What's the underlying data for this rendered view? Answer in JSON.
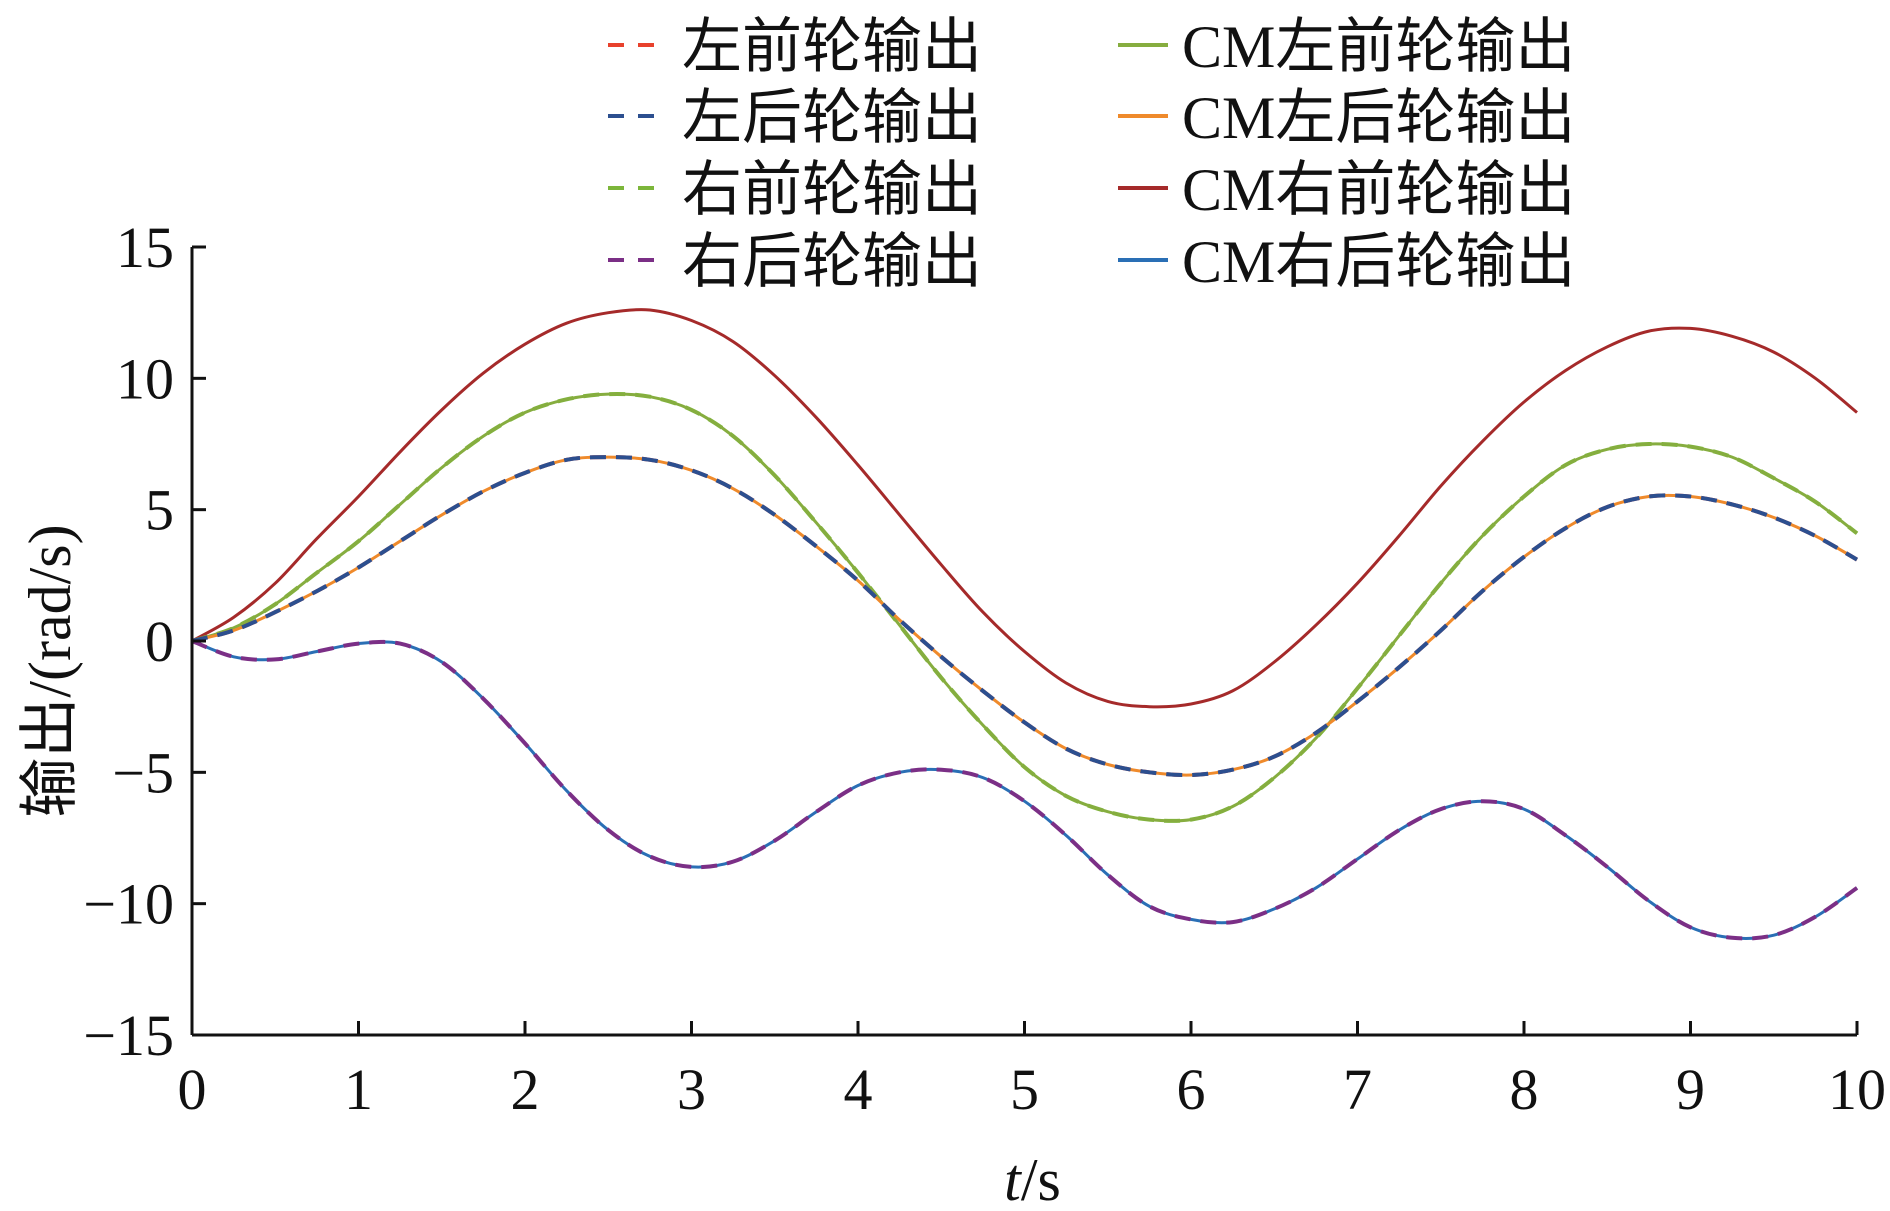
{
  "chart_data": {
    "type": "line",
    "xlabel_italic": "t",
    "xlabel_unit": "/s",
    "ylabel": "输出/(rad/s)",
    "xlim": [
      0,
      10
    ],
    "ylim": [
      -15,
      15
    ],
    "xticks": [
      0,
      1,
      2,
      3,
      4,
      5,
      6,
      7,
      8,
      9,
      10
    ],
    "yticks": [
      15,
      10,
      5,
      0,
      -5,
      -10,
      -15
    ],
    "ytick_labels": [
      "15",
      "10",
      "5",
      "0",
      "−5",
      "−10",
      "−15"
    ],
    "legend_position": "top",
    "legend": {
      "left": [
        {
          "label": "左前轮输出",
          "color": "#e8412c",
          "style": "dashed"
        },
        {
          "label": "左后轮输出",
          "color": "#2c4f8f",
          "style": "dashed"
        },
        {
          "label": "右前轮输出",
          "color": "#7cb63a",
          "style": "dashed"
        },
        {
          "label": "右后轮输出",
          "color": "#7b2f86",
          "style": "dashed"
        }
      ],
      "right": [
        {
          "label": "CM左前轮输出",
          "color": "#86ad3f",
          "style": "solid"
        },
        {
          "label": "CM左后轮输出",
          "color": "#ef8a2b",
          "style": "solid"
        },
        {
          "label": "CM右前轮输出",
          "color": "#a52a2a",
          "style": "solid"
        },
        {
          "label": "CM右后轮输出",
          "color": "#2a6fb5",
          "style": "solid"
        }
      ]
    },
    "x": [
      0,
      0.25,
      0.5,
      0.75,
      1,
      1.25,
      1.5,
      1.75,
      2,
      2.25,
      2.5,
      2.75,
      3,
      3.25,
      3.5,
      3.75,
      4,
      4.25,
      4.5,
      4.75,
      5,
      5.25,
      5.5,
      5.75,
      6,
      6.25,
      6.5,
      6.75,
      7,
      7.25,
      7.5,
      7.75,
      8,
      8.25,
      8.5,
      8.75,
      9,
      9.25,
      9.5,
      9.75,
      10
    ],
    "series": [
      {
        "name": "CM右前轮输出",
        "color": "#a52a2a",
        "style": "solid",
        "values": [
          0,
          0.9,
          2.2,
          3.9,
          5.5,
          7.2,
          8.8,
          10.2,
          11.3,
          12.1,
          12.5,
          12.6,
          12.2,
          11.4,
          10.1,
          8.5,
          6.7,
          4.8,
          2.9,
          1.1,
          -0.4,
          -1.6,
          -2.3,
          -2.5,
          -2.4,
          -1.9,
          -0.8,
          0.6,
          2.2,
          4.0,
          5.9,
          7.6,
          9.1,
          10.3,
          11.2,
          11.8,
          11.9,
          11.6,
          11.0,
          10.0,
          8.7
        ]
      },
      {
        "name": "右前轮输出",
        "color": "#7cb63a",
        "style": "dashed",
        "values": [
          0,
          0.5,
          1.4,
          2.6,
          3.8,
          5.2,
          6.6,
          7.8,
          8.7,
          9.2,
          9.4,
          9.3,
          8.8,
          7.8,
          6.3,
          4.5,
          2.6,
          0.6,
          -1.4,
          -3.2,
          -4.8,
          -5.9,
          -6.5,
          -6.8,
          -6.8,
          -6.3,
          -5.2,
          -3.7,
          -1.8,
          0.2,
          2.2,
          4.0,
          5.5,
          6.7,
          7.3,
          7.5,
          7.4,
          7.0,
          6.2,
          5.3,
          4.1
        ]
      },
      {
        "name": "CM左前轮输出",
        "color": "#86ad3f",
        "style": "solid",
        "values": [
          0,
          0.5,
          1.4,
          2.6,
          3.8,
          5.2,
          6.6,
          7.8,
          8.7,
          9.2,
          9.4,
          9.3,
          8.8,
          7.8,
          6.3,
          4.5,
          2.6,
          0.6,
          -1.4,
          -3.2,
          -4.8,
          -5.9,
          -6.5,
          -6.8,
          -6.8,
          -6.3,
          -5.2,
          -3.7,
          -1.8,
          0.2,
          2.2,
          4.0,
          5.5,
          6.7,
          7.3,
          7.5,
          7.4,
          7.0,
          6.2,
          5.3,
          4.1
        ]
      },
      {
        "name": "左前轮输出",
        "color": "#e8412c",
        "style": "dashed",
        "values": [
          0,
          0.4,
          1.1,
          1.9,
          2.8,
          3.8,
          4.8,
          5.7,
          6.4,
          6.9,
          7.0,
          6.9,
          6.5,
          5.8,
          4.8,
          3.6,
          2.3,
          0.8,
          -0.6,
          -1.9,
          -3.1,
          -4.1,
          -4.7,
          -5.0,
          -5.1,
          -4.9,
          -4.4,
          -3.5,
          -2.3,
          -1.0,
          0.4,
          1.9,
          3.2,
          4.3,
          5.1,
          5.5,
          5.5,
          5.2,
          4.7,
          4.0,
          3.1
        ]
      },
      {
        "name": "CM左后轮输出",
        "color": "#ef8a2b",
        "style": "solid",
        "values": [
          0,
          0.4,
          1.1,
          1.9,
          2.8,
          3.8,
          4.8,
          5.7,
          6.4,
          6.9,
          7.0,
          6.9,
          6.5,
          5.8,
          4.8,
          3.6,
          2.3,
          0.8,
          -0.6,
          -1.9,
          -3.1,
          -4.1,
          -4.7,
          -5.0,
          -5.1,
          -4.9,
          -4.4,
          -3.5,
          -2.3,
          -1.0,
          0.4,
          1.9,
          3.2,
          4.3,
          5.1,
          5.5,
          5.5,
          5.2,
          4.7,
          4.0,
          3.1
        ]
      },
      {
        "name": "左后轮输出",
        "color": "#2c4f8f",
        "style": "dashed",
        "values": [
          0,
          0.4,
          1.1,
          1.9,
          2.8,
          3.8,
          4.8,
          5.7,
          6.4,
          6.9,
          7.0,
          6.9,
          6.5,
          5.8,
          4.8,
          3.6,
          2.3,
          0.8,
          -0.6,
          -1.9,
          -3.1,
          -4.1,
          -4.7,
          -5.0,
          -5.1,
          -4.9,
          -4.4,
          -3.5,
          -2.3,
          -1.0,
          0.4,
          1.9,
          3.2,
          4.3,
          5.1,
          5.5,
          5.5,
          5.2,
          4.7,
          4.0,
          3.1
        ]
      },
      {
        "name": "CM右后轮输出",
        "color": "#2a6fb5",
        "style": "solid",
        "values": [
          0,
          -0.6,
          -0.7,
          -0.4,
          -0.1,
          -0.1,
          -0.8,
          -2.2,
          -3.9,
          -5.7,
          -7.2,
          -8.2,
          -8.6,
          -8.4,
          -7.6,
          -6.5,
          -5.5,
          -5.0,
          -4.9,
          -5.2,
          -6.1,
          -7.4,
          -8.9,
          -10.1,
          -10.6,
          -10.7,
          -10.2,
          -9.4,
          -8.3,
          -7.2,
          -6.4,
          -6.1,
          -6.4,
          -7.4,
          -8.6,
          -9.9,
          -10.9,
          -11.3,
          -11.2,
          -10.5,
          -9.4
        ]
      },
      {
        "name": "右后轮输出",
        "color": "#7b2f86",
        "style": "dashed",
        "values": [
          0,
          -0.6,
          -0.7,
          -0.4,
          -0.1,
          -0.1,
          -0.8,
          -2.2,
          -3.9,
          -5.7,
          -7.2,
          -8.2,
          -8.6,
          -8.4,
          -7.6,
          -6.5,
          -5.5,
          -5.0,
          -4.9,
          -5.2,
          -6.1,
          -7.4,
          -8.9,
          -10.1,
          -10.6,
          -10.7,
          -10.2,
          -9.4,
          -8.3,
          -7.2,
          -6.4,
          -6.1,
          -6.4,
          -7.4,
          -8.6,
          -9.9,
          -10.9,
          -11.3,
          -11.2,
          -10.5,
          -9.4
        ]
      }
    ]
  }
}
